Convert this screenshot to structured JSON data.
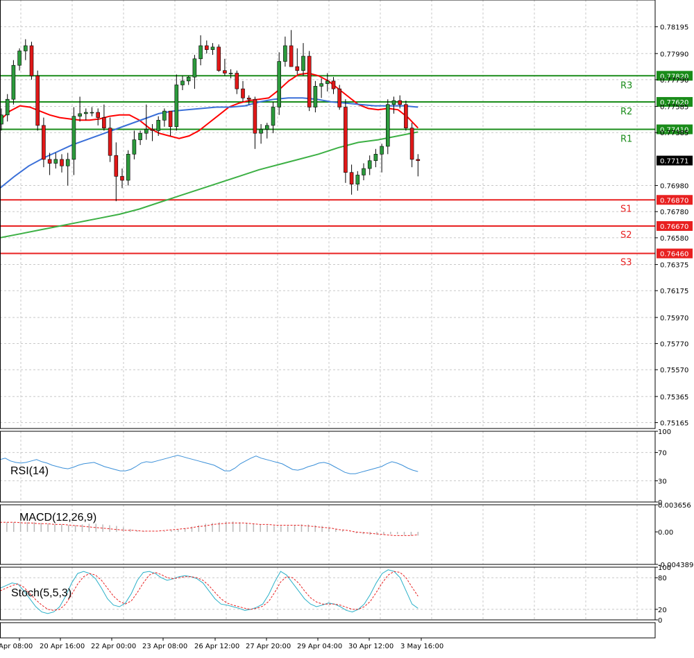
{
  "chart_data": {
    "type": "candlestick",
    "instrument_panel": {
      "price_ticks": [
        "0.78195",
        "0.77990",
        "0.77790",
        "0.77585",
        "0.77385",
        "0.76980",
        "0.76780",
        "0.76580",
        "0.76375",
        "0.76175",
        "0.75970",
        "0.75770",
        "0.75570",
        "0.75365",
        "0.75165"
      ],
      "price_tick_values": [
        0.78195,
        0.7799,
        0.7779,
        0.77585,
        0.77385,
        0.7698,
        0.7678,
        0.7658,
        0.76375,
        0.76175,
        0.7597,
        0.7577,
        0.7557,
        0.75365,
        0.75165
      ],
      "ylim": [
        0.7512,
        0.784
      ],
      "current_price": "0.77171",
      "current_price_value": 0.77171,
      "resistance": [
        {
          "name": "R1",
          "value": 0.7741,
          "tag": "0.77410"
        },
        {
          "name": "R2",
          "value": 0.7762,
          "tag": "0.77620"
        },
        {
          "name": "R3",
          "value": 0.7782,
          "tag": "0.77820"
        }
      ],
      "support": [
        {
          "name": "S1",
          "value": 0.7687,
          "tag": "0.76870"
        },
        {
          "name": "S2",
          "value": 0.7667,
          "tag": "0.76670"
        },
        {
          "name": "S3",
          "value": 0.7646,
          "tag": "0.76460"
        }
      ],
      "candles_ohlc": [
        [
          0.7745,
          0.7757,
          0.774,
          0.7752
        ],
        [
          0.7752,
          0.7768,
          0.7747,
          0.7764
        ],
        [
          0.7764,
          0.7794,
          0.776,
          0.779
        ],
        [
          0.779,
          0.7803,
          0.7786,
          0.7801
        ],
        [
          0.7801,
          0.781,
          0.7794,
          0.7805
        ],
        [
          0.7805,
          0.7808,
          0.7779,
          0.7782
        ],
        [
          0.7782,
          0.7786,
          0.774,
          0.7744
        ],
        [
          0.7744,
          0.775,
          0.7712,
          0.7718
        ],
        [
          0.7718,
          0.7723,
          0.7706,
          0.7715
        ],
        [
          0.7715,
          0.7723,
          0.7711,
          0.7718
        ],
        [
          0.7718,
          0.7722,
          0.7708,
          0.7713
        ],
        [
          0.7713,
          0.7723,
          0.7698,
          0.7718
        ],
        [
          0.7718,
          0.7758,
          0.7706,
          0.7751
        ],
        [
          0.7751,
          0.7766,
          0.7747,
          0.7753
        ],
        [
          0.7753,
          0.7757,
          0.7748,
          0.7754
        ],
        [
          0.7754,
          0.7758,
          0.7751,
          0.7754
        ],
        [
          0.7754,
          0.7757,
          0.7744,
          0.775
        ],
        [
          0.775,
          0.776,
          0.774,
          0.7742
        ],
        [
          0.7742,
          0.775,
          0.7716,
          0.7721
        ],
        [
          0.7721,
          0.7731,
          0.7686,
          0.7705
        ],
        [
          0.7705,
          0.7711,
          0.7696,
          0.7702
        ],
        [
          0.7702,
          0.7725,
          0.7698,
          0.7722
        ],
        [
          0.7722,
          0.774,
          0.7718,
          0.7733
        ],
        [
          0.7733,
          0.774,
          0.7729,
          0.7738
        ],
        [
          0.7738,
          0.776,
          0.7733,
          0.7741
        ],
        [
          0.7741,
          0.7745,
          0.7732,
          0.774
        ],
        [
          0.774,
          0.7751,
          0.7736,
          0.7748
        ],
        [
          0.7748,
          0.7757,
          0.7743,
          0.7755
        ],
        [
          0.7755,
          0.7751,
          0.7736,
          0.7743
        ],
        [
          0.7743,
          0.7783,
          0.774,
          0.7775
        ],
        [
          0.7775,
          0.7782,
          0.7771,
          0.7778
        ],
        [
          0.7778,
          0.7782,
          0.7775,
          0.7781
        ],
        [
          0.7781,
          0.7798,
          0.7772,
          0.7795
        ],
        [
          0.7795,
          0.7813,
          0.779,
          0.7805
        ],
        [
          0.7805,
          0.7809,
          0.7799,
          0.7802
        ],
        [
          0.7802,
          0.7807,
          0.7798,
          0.7804
        ],
        [
          0.7804,
          0.7806,
          0.7785,
          0.7786
        ],
        [
          0.7786,
          0.7795,
          0.7782,
          0.7784
        ],
        [
          0.7784,
          0.7787,
          0.778,
          0.7784
        ],
        [
          0.7784,
          0.7786,
          0.7768,
          0.7772
        ],
        [
          0.7772,
          0.7778,
          0.7762,
          0.7765
        ],
        [
          0.7765,
          0.7767,
          0.776,
          0.7764
        ],
        [
          0.7764,
          0.7766,
          0.7726,
          0.7738
        ],
        [
          0.7738,
          0.7745,
          0.773,
          0.7741
        ],
        [
          0.7741,
          0.7746,
          0.7734,
          0.7744
        ],
        [
          0.7744,
          0.7762,
          0.7738,
          0.7758
        ],
        [
          0.7758,
          0.78,
          0.7752,
          0.7793
        ],
        [
          0.7793,
          0.7812,
          0.7789,
          0.7805
        ],
        [
          0.7805,
          0.7817,
          0.78,
          0.7789
        ],
        [
          0.7789,
          0.7803,
          0.7783,
          0.7786
        ],
        [
          0.7786,
          0.7807,
          0.7782,
          0.7797
        ],
        [
          0.7797,
          0.7801,
          0.7755,
          0.7758
        ],
        [
          0.7758,
          0.7778,
          0.7754,
          0.7774
        ],
        [
          0.7774,
          0.778,
          0.7765,
          0.7776
        ],
        [
          0.7776,
          0.7784,
          0.777,
          0.7778
        ],
        [
          0.7778,
          0.7781,
          0.7768,
          0.7772
        ],
        [
          0.7772,
          0.7775,
          0.7756,
          0.7758
        ],
        [
          0.7758,
          0.7764,
          0.77,
          0.7708
        ],
        [
          0.7708,
          0.7714,
          0.7691,
          0.7699
        ],
        [
          0.7699,
          0.7709,
          0.7694,
          0.7706
        ],
        [
          0.7706,
          0.7715,
          0.7702,
          0.7711
        ],
        [
          0.7711,
          0.7721,
          0.7706,
          0.7717
        ],
        [
          0.7717,
          0.7726,
          0.7712,
          0.7722
        ],
        [
          0.7722,
          0.773,
          0.7708,
          0.7728
        ],
        [
          0.7728,
          0.7764,
          0.7722,
          0.776
        ],
        [
          0.776,
          0.7766,
          0.7753,
          0.7763
        ],
        [
          0.7763,
          0.7767,
          0.7757,
          0.776
        ],
        [
          0.776,
          0.7763,
          0.774,
          0.7742
        ],
        [
          0.7742,
          0.7746,
          0.7712,
          0.7718
        ],
        [
          0.7718,
          0.7722,
          0.7705,
          0.7717
        ]
      ],
      "moving_averages": [
        {
          "color": "#ff0000",
          "values": [
            0.7748,
            0.7755,
            0.7759,
            0.7758,
            0.7755,
            0.7752,
            0.775,
            0.7749,
            0.7748,
            0.7748,
            0.7749,
            0.7751,
            0.7752,
            0.7752,
            0.7748,
            0.7742,
            0.7738,
            0.7736,
            0.7734,
            0.7736,
            0.774,
            0.7746,
            0.7752,
            0.7758,
            0.7761,
            0.7763,
            0.7764,
            0.7765,
            0.7771,
            0.7778,
            0.7783,
            0.7784,
            0.7782,
            0.7778,
            0.7772,
            0.7766,
            0.776,
            0.7757,
            0.7756,
            0.7757,
            0.7756,
            0.775,
            0.7742
          ]
        },
        {
          "color": "#3a6fd8",
          "values": [
            0.7696,
            0.7705,
            0.7713,
            0.7719,
            0.7724,
            0.7729,
            0.7733,
            0.7737,
            0.7741,
            0.7745,
            0.7749,
            0.7753,
            0.7755,
            0.7756,
            0.7757,
            0.7758,
            0.7758,
            0.7759,
            0.7762,
            0.7764,
            0.7765,
            0.7765,
            0.7764,
            0.7762,
            0.7761,
            0.776,
            0.7759,
            0.7759,
            0.7759,
            0.7758
          ]
        },
        {
          "color": "#3cb044",
          "values": [
            0.7658,
            0.7661,
            0.7664,
            0.7667,
            0.767,
            0.7673,
            0.7676,
            0.768,
            0.7685,
            0.769,
            0.7695,
            0.77,
            0.7705,
            0.771,
            0.7714,
            0.7718,
            0.7722,
            0.7727,
            0.7731,
            0.7733,
            0.7736,
            0.7739
          ]
        }
      ]
    },
    "rsi_panel": {
      "label": "RSI(14)",
      "ticks": [
        "100",
        "70",
        "30",
        "0"
      ],
      "tick_values": [
        100,
        70,
        30,
        0
      ],
      "ylim": [
        0,
        100
      ],
      "values": [
        60,
        62,
        58,
        56,
        55,
        56,
        58,
        60,
        57,
        55,
        52,
        50,
        48,
        47,
        49,
        52,
        54,
        55,
        56,
        53,
        50,
        48,
        46,
        44,
        44,
        46,
        50,
        55,
        57,
        56,
        58,
        60,
        62,
        64,
        66,
        64,
        62,
        60,
        58,
        56,
        54,
        52,
        48,
        44,
        44,
        48,
        54,
        58,
        62,
        65,
        62,
        60,
        58,
        56,
        54,
        50,
        46,
        45,
        47,
        50,
        52,
        55,
        56,
        54,
        50,
        46,
        42,
        40,
        40,
        42,
        44,
        46,
        48,
        50,
        54,
        57,
        55,
        52,
        48,
        45,
        43
      ]
    },
    "macd_panel": {
      "label": "MACD(12,26,9)",
      "ticks": [
        "0.003656",
        "0.00",
        "-0.004389"
      ],
      "tick_values": [
        0.003656,
        0,
        -0.004389
      ],
      "ylim": [
        -0.004389,
        0.003656
      ],
      "histogram": [
        0.0012,
        0.0013,
        0.0013,
        0.0014,
        0.0013,
        0.0013,
        0.0012,
        0.0011,
        0.001,
        0.001,
        0.0009,
        0.0009,
        0.001,
        0.0011,
        0.0011,
        0.001,
        0.0009,
        0.0008,
        0.0006,
        0.0004,
        0.0002,
        0.0001,
        0.0,
        0.0,
        0.0001,
        0.0002,
        0.0003,
        0.0005,
        0.0007,
        0.0009,
        0.0011,
        0.0012,
        0.0013,
        0.0014,
        0.0014,
        0.0013,
        0.0012,
        0.0011,
        0.001,
        0.0009,
        0.0008,
        0.0008,
        0.0008,
        0.0009,
        0.001,
        0.001,
        0.0009,
        0.0008,
        0.0006,
        0.0004,
        0.0002,
        0.0,
        -0.0002,
        -0.0003,
        -0.0004,
        -0.0004,
        -0.0004,
        -0.0003,
        -0.0003,
        -0.0004,
        -0.0005,
        -0.0005
      ],
      "signal": [
        0.0013,
        0.0013,
        0.0013,
        0.0012,
        0.0012,
        0.0011,
        0.0011,
        0.001,
        0.001,
        0.0009,
        0.0008,
        0.0007,
        0.0006,
        0.0005,
        0.0004,
        0.0003,
        0.0002,
        0.0002,
        0.0001,
        0.0001,
        0.0001,
        0.0002,
        0.0003,
        0.0004,
        0.0005,
        0.0007,
        0.0008,
        0.001,
        0.0011,
        0.0012,
        0.0012,
        0.0012,
        0.0011,
        0.001,
        0.001,
        0.0009,
        0.0009,
        0.0009,
        0.0009,
        0.0008,
        0.0007,
        0.0006,
        0.0005,
        0.0003,
        0.0002,
        0.0,
        -0.0001,
        -0.0002,
        -0.0003,
        -0.0004,
        -0.0005,
        -0.0005,
        -0.0005,
        -0.0004
      ]
    },
    "stoch_panel": {
      "label": "Stoch(5,5,3)",
      "ticks": [
        "100",
        "80",
        "20",
        "0"
      ],
      "tick_values": [
        100,
        80,
        20,
        0
      ],
      "ylim": [
        0,
        100
      ],
      "main": [
        60,
        65,
        70,
        68,
        55,
        40,
        25,
        15,
        12,
        15,
        25,
        45,
        70,
        88,
        92,
        88,
        78,
        60,
        40,
        28,
        25,
        32,
        50,
        75,
        90,
        92,
        88,
        80,
        75,
        78,
        82,
        84,
        82,
        78,
        70,
        55,
        40,
        30,
        28,
        25,
        22,
        18,
        20,
        24,
        30,
        48,
        72,
        92,
        85,
        70,
        55,
        40,
        30,
        25,
        28,
        32,
        30,
        25,
        18,
        15,
        20,
        30,
        48,
        70,
        88,
        95,
        92,
        80,
        55,
        30,
        22
      ],
      "signal": [
        55,
        60,
        65,
        68,
        62,
        50,
        38,
        28,
        20,
        18,
        20,
        30,
        48,
        68,
        82,
        88,
        85,
        75,
        60,
        45,
        35,
        30,
        36,
        52,
        70,
        85,
        90,
        86,
        80,
        78,
        80,
        82,
        82,
        80,
        75,
        65,
        52,
        40,
        32,
        28,
        25,
        22,
        20,
        22,
        26,
        35,
        52,
        72,
        82,
        80,
        70,
        55,
        42,
        34,
        30,
        30,
        30,
        28,
        24,
        20,
        20,
        25,
        35,
        52,
        70,
        85,
        92,
        90,
        80,
        62,
        45
      ]
    },
    "x_tick_labels": [
      "Apr 08:00",
      "20 Apr 16:00",
      "22 Apr 00:00",
      "23 Apr 08:00",
      "26 Apr 12:00",
      "27 Apr 20:00",
      "29 Apr 04:00",
      "30 Apr 12:00",
      "3 May 16:00"
    ],
    "grid": true
  },
  "colors": {
    "bull": "#2c9a3c",
    "bear": "#e01818",
    "resistance": "#1a8c1a",
    "support": "#e82020",
    "rsi": "#3a8fd8",
    "macd_hist": "#b8b8b8",
    "macd_signal": "#e82020",
    "stoch_main": "#2ab0c8",
    "stoch_signal": "#e82020",
    "grid": "#c8c8c8"
  }
}
